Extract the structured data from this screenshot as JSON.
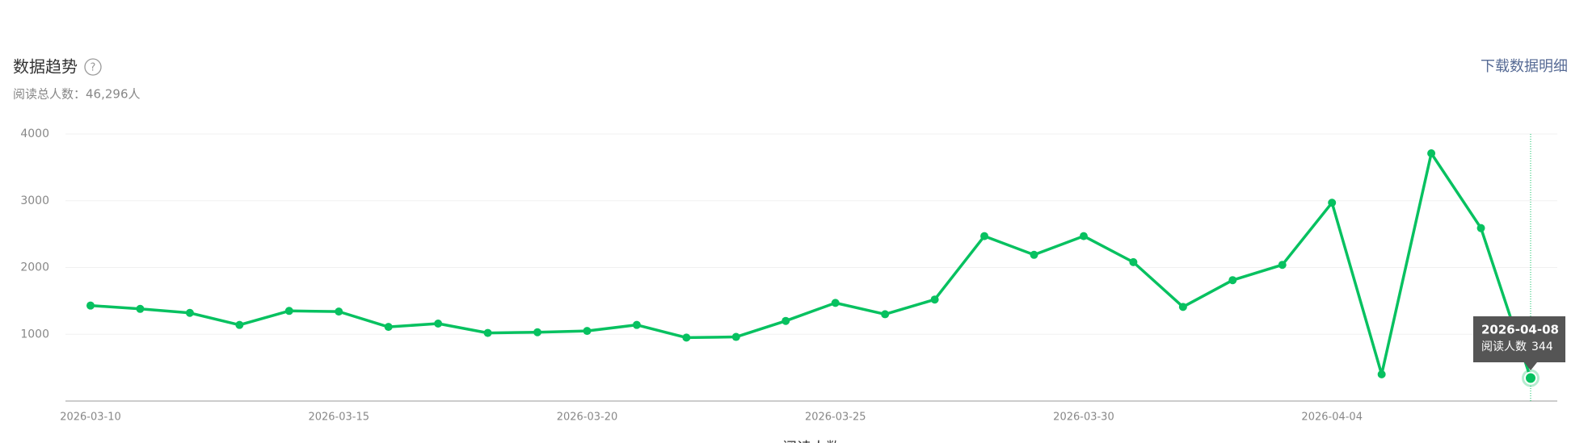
{
  "header": {
    "title": "数据趋势",
    "summary": "阅读总人数：46,296人",
    "download": "下载数据明细"
  },
  "chart_data": {
    "type": "line",
    "categories": [
      "2026-03-10",
      null,
      null,
      null,
      null,
      "2026-03-15",
      null,
      null,
      null,
      null,
      "2026-03-20",
      null,
      null,
      null,
      null,
      "2026-03-25",
      null,
      null,
      null,
      null,
      "2026-03-30",
      null,
      null,
      null,
      null,
      "2026-04-04",
      null,
      null,
      null,
      null
    ],
    "series": [
      {
        "name": "阅读人数",
        "color": "#07c160",
        "values": [
          1430,
          1380,
          1320,
          1140,
          1350,
          1340,
          1110,
          1160,
          1020,
          1030,
          1050,
          1140,
          950,
          960,
          1200,
          1470,
          1300,
          1520,
          2470,
          2190,
          2470,
          2080,
          1410,
          1810,
          2040,
          2970,
          400,
          3710,
          2590,
          344
        ]
      }
    ],
    "ylim": [
      0,
      4000
    ],
    "yticks": [
      1000,
      2000,
      3000,
      4000
    ],
    "grid": true,
    "tooltip": {
      "date": "2026-04-08",
      "index": 29
    }
  }
}
